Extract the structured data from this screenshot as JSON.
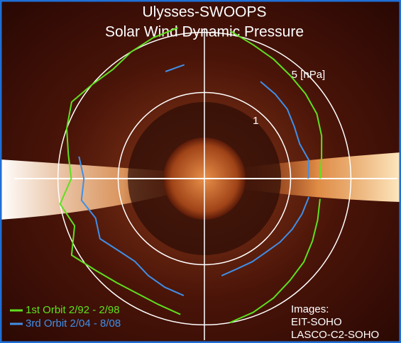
{
  "chart_data": {
    "type": "polar",
    "title": "Ulysses-SWOOPS",
    "subtitle": "Solar Wind Dynamic Pressure",
    "theta": [
      0,
      10,
      20,
      30,
      40,
      50,
      60,
      70,
      80,
      90,
      100,
      110,
      120,
      130,
      140,
      150,
      160,
      170,
      180,
      190,
      200,
      210,
      220,
      230,
      240,
      250,
      260,
      270,
      280,
      290,
      300,
      310,
      320,
      330,
      340,
      350
    ],
    "rscale": "log",
    "rlim": [
      0.1,
      10
    ],
    "rticks": [
      1,
      {
        "value": 5,
        "label": "5 [nPa]"
      }
    ],
    "series": [
      {
        "name": "1st Orbit 2/92 - 2/98",
        "color": "#5fe01e",
        "values": [
          2.2,
          2.4,
          2.8,
          3.2,
          3.4,
          3.6,
          4,
          4.5,
          5.5,
          null,
          6,
          5.5,
          5,
          4.5,
          5,
          6,
          5,
          4,
          3.5,
          5,
          4,
          6,
          4.5,
          3.8,
          3.5,
          3.6,
          4,
          null,
          5,
          4.5,
          4,
          3.5,
          3.2,
          2.8,
          2.5,
          2.3
        ]
      },
      {
        "name": "3rd Orbit 2/04 - 8/08",
        "color": "#3f8fe8",
        "values": [
          1.6,
          1.7,
          1.5,
          1.6,
          1.8,
          1.9,
          2,
          null,
          null,
          null,
          2.2,
          2.1,
          null,
          null,
          null,
          null,
          null,
          3,
          2.5,
          2.8,
          2.2,
          2.5,
          2,
          1.8,
          2,
          2.2,
          2.4,
          null,
          1.4,
          1.3,
          1.3,
          1.3,
          1.4,
          1.5,
          1.6,
          1.7
        ]
      }
    ],
    "legend": "lower left",
    "annotations": [
      "Images:",
      "EIT-SOHO",
      "LASCO-C2-SOHO"
    ]
  }
}
